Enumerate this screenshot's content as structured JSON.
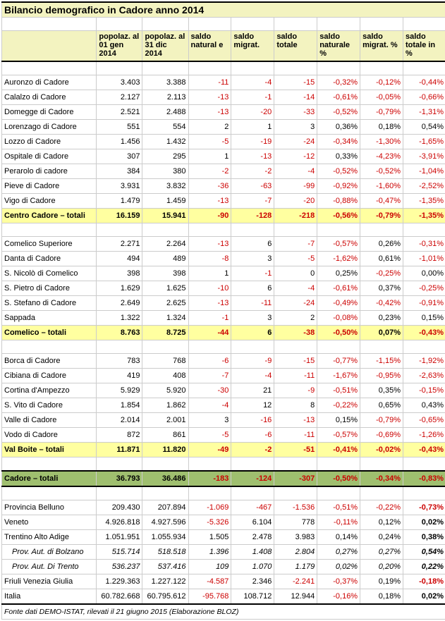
{
  "title": "Bilancio demografico in Cadore anno 2014",
  "footer": "Fonte dati DEMO-ISTAT, rilevati il 21 giugno 2015 (Elaborazione BLOZ)",
  "columns": [
    "",
    "popolaz. al 01 gen 2014",
    "popolaz. al 31 dic 2014",
    "saldo natural e",
    "saldo migrat.",
    "saldo totale",
    "saldo naturale %",
    "saldo migrat. %",
    "saldo totale in %"
  ],
  "colors": {
    "header_bg": "#f3f3c0",
    "subtotal_bg": "#ffffa0",
    "grand_bg": "#9fbf6f",
    "negative": "#cc0000"
  },
  "rows": [
    {
      "t": "d",
      "n": "Auronzo di Cadore",
      "v": [
        "3.403",
        "3.388",
        "-11",
        "-4",
        "-15",
        "-0,32%",
        "-0,12%",
        "-0,44%"
      ]
    },
    {
      "t": "d",
      "n": "Calalzo di Cadore",
      "v": [
        "2.127",
        "2.113",
        "-13",
        "-1",
        "-14",
        "-0,61%",
        "-0,05%",
        "-0,66%"
      ]
    },
    {
      "t": "d",
      "n": "Domegge di Cadore",
      "v": [
        "2.521",
        "2.488",
        "-13",
        "-20",
        "-33",
        "-0,52%",
        "-0,79%",
        "-1,31%"
      ]
    },
    {
      "t": "d",
      "n": "Lorenzago di Cadore",
      "v": [
        "551",
        "554",
        "2",
        "1",
        "3",
        "0,36%",
        "0,18%",
        "0,54%"
      ]
    },
    {
      "t": "d",
      "n": "Lozzo di Cadore",
      "v": [
        "1.456",
        "1.432",
        "-5",
        "-19",
        "-24",
        "-0,34%",
        "-1,30%",
        "-1,65%"
      ]
    },
    {
      "t": "d",
      "n": "Ospitale di Cadore",
      "v": [
        "307",
        "295",
        "1",
        "-13",
        "-12",
        "0,33%",
        "-4,23%",
        "-3,91%"
      ]
    },
    {
      "t": "d",
      "n": "Perarolo di cadore",
      "v": [
        "384",
        "380",
        "-2",
        "-2",
        "-4",
        "-0,52%",
        "-0,52%",
        "-1,04%"
      ]
    },
    {
      "t": "d",
      "n": "Pieve di Cadore",
      "v": [
        "3.931",
        "3.832",
        "-36",
        "-63",
        "-99",
        "-0,92%",
        "-1,60%",
        "-2,52%"
      ]
    },
    {
      "t": "d",
      "n": "Vigo di Cadore",
      "v": [
        "1.479",
        "1.459",
        "-13",
        "-7",
        "-20",
        "-0,88%",
        "-0,47%",
        "-1,35%"
      ]
    },
    {
      "t": "s",
      "n": "Centro Cadore – totali",
      "v": [
        "16.159",
        "15.941",
        "-90",
        "-128",
        "-218",
        "-0,56%",
        "-0,79%",
        "-1,35%"
      ]
    },
    {
      "t": "e"
    },
    {
      "t": "d",
      "n": "Comelico Superiore",
      "v": [
        "2.271",
        "2.264",
        "-13",
        "6",
        "-7",
        "-0,57%",
        "0,26%",
        "-0,31%"
      ]
    },
    {
      "t": "d",
      "n": "Danta di Cadore",
      "v": [
        "494",
        "489",
        "-8",
        "3",
        "-5",
        "-1,62%",
        "0,61%",
        "-1,01%"
      ]
    },
    {
      "t": "d",
      "n": "S. Nicolò di Comelico",
      "v": [
        "398",
        "398",
        "1",
        "-1",
        "0",
        "0,25%",
        "-0,25%",
        "0,00%"
      ]
    },
    {
      "t": "d",
      "n": "S. Pietro di Cadore",
      "v": [
        "1.629",
        "1.625",
        "-10",
        "6",
        "-4",
        "-0,61%",
        "0,37%",
        "-0,25%"
      ]
    },
    {
      "t": "d",
      "n": "S. Stefano di Cadore",
      "v": [
        "2.649",
        "2.625",
        "-13",
        "-11",
        "-24",
        "-0,49%",
        "-0,42%",
        "-0,91%"
      ]
    },
    {
      "t": "d",
      "n": "Sappada",
      "v": [
        "1.322",
        "1.324",
        "-1",
        "3",
        "2",
        "-0,08%",
        "0,23%",
        "0,15%"
      ]
    },
    {
      "t": "s",
      "n": "Comelico – totali",
      "v": [
        "8.763",
        "8.725",
        "-44",
        "6",
        "-38",
        "-0,50%",
        "0,07%",
        "-0,43%"
      ]
    },
    {
      "t": "e"
    },
    {
      "t": "d",
      "n": "Borca di Cadore",
      "v": [
        "783",
        "768",
        "-6",
        "-9",
        "-15",
        "-0,77%",
        "-1,15%",
        "-1,92%"
      ]
    },
    {
      "t": "d",
      "n": "Cibiana di Cadore",
      "v": [
        "419",
        "408",
        "-7",
        "-4",
        "-11",
        "-1,67%",
        "-0,95%",
        "-2,63%"
      ]
    },
    {
      "t": "d",
      "n": "Cortina d'Ampezzo",
      "v": [
        "5.929",
        "5.920",
        "-30",
        "21",
        "-9",
        "-0,51%",
        "0,35%",
        "-0,15%"
      ]
    },
    {
      "t": "d",
      "n": "S. Vito di Cadore",
      "v": [
        "1.854",
        "1.862",
        "-4",
        "12",
        "8",
        "-0,22%",
        "0,65%",
        "0,43%"
      ]
    },
    {
      "t": "d",
      "n": "Valle di Cadore",
      "v": [
        "2.014",
        "2.001",
        "3",
        "-16",
        "-13",
        "0,15%",
        "-0,79%",
        "-0,65%"
      ]
    },
    {
      "t": "d",
      "n": "Vodo di Cadore",
      "v": [
        "872",
        "861",
        "-5",
        "-6",
        "-11",
        "-0,57%",
        "-0,69%",
        "-1,26%"
      ]
    },
    {
      "t": "s",
      "n": "Val Boite – totali",
      "v": [
        "11.871",
        "11.820",
        "-49",
        "-2",
        "-51",
        "-0,41%",
        "-0,02%",
        "-0,43%"
      ]
    },
    {
      "t": "e"
    },
    {
      "t": "g",
      "n": "Cadore – totali",
      "v": [
        "36.793",
        "36.486",
        "-183",
        "-124",
        "-307",
        "-0,50%",
        "-0,34%",
        "-0,83%"
      ]
    },
    {
      "t": "e"
    },
    {
      "t": "d",
      "n": "Provincia Belluno",
      "v": [
        "209.430",
        "207.894",
        "-1.069",
        "-467",
        "-1.536",
        "-0,51%",
        "-0,22%",
        "-0,73%"
      ],
      "lb": true
    },
    {
      "t": "d",
      "n": "Veneto",
      "v": [
        "4.926.818",
        "4.927.596",
        "-5.326",
        "6.104",
        "778",
        "-0,11%",
        "0,12%",
        "0,02%"
      ],
      "lb": true
    },
    {
      "t": "d",
      "n": "Trentino Alto Adige",
      "v": [
        "1.051.951",
        "1.055.934",
        "1.505",
        "2.478",
        "3.983",
        "0,14%",
        "0,24%",
        "0,38%"
      ],
      "lb": true
    },
    {
      "t": "d",
      "n": "Prov. Aut. di Bolzano",
      "v": [
        "515.714",
        "518.518",
        "1.396",
        "1.408",
        "2.804",
        "0,27%",
        "0,27%",
        "0,54%"
      ],
      "it": true,
      "lb": true
    },
    {
      "t": "d",
      "n": "Prov. Aut. Di Trento",
      "v": [
        "536.237",
        "537.416",
        "109",
        "1.070",
        "1.179",
        "0,02%",
        "0,20%",
        "0,22%"
      ],
      "it": true,
      "lb": true
    },
    {
      "t": "d",
      "n": "Friuli Venezia Giulia",
      "v": [
        "1.229.363",
        "1.227.122",
        "-4.587",
        "2.346",
        "-2.241",
        "-0,37%",
        "0,19%",
        "-0,18%"
      ],
      "lb": true
    },
    {
      "t": "d",
      "n": "Italia",
      "v": [
        "60.782.668",
        "60.795.612",
        "-95.768",
        "108.712",
        "12.944",
        "-0,16%",
        "0,18%",
        "0,02%"
      ],
      "lb": true
    }
  ]
}
